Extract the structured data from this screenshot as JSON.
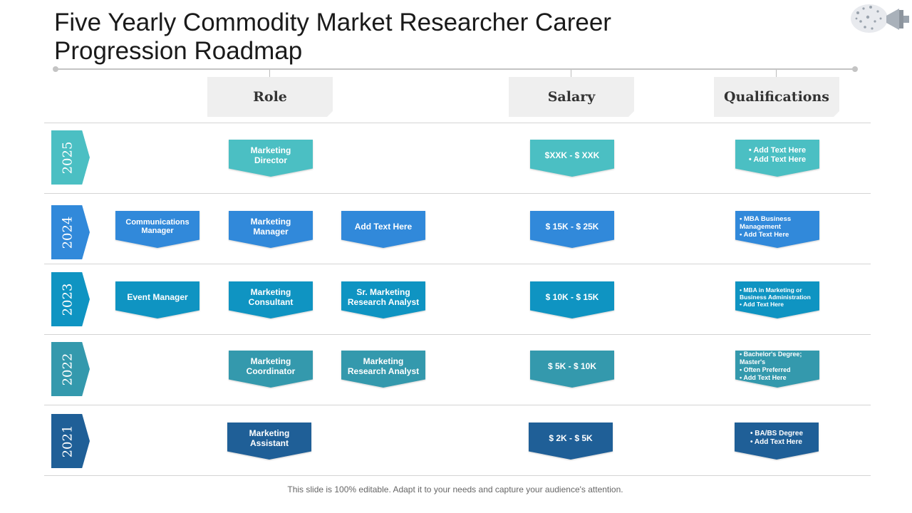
{
  "title": "Five Yearly Commodity Market Researcher Career Progression Roadmap",
  "icons": {
    "corner": "megaphone-icon"
  },
  "headers": {
    "role": "Role",
    "salary": "Salary",
    "qualifications": "Qualifications"
  },
  "colors": {
    "y2025": "#4bbfc3",
    "y2024": "#3189da",
    "y2023": "#0f94c2",
    "y2022": "#3499ad",
    "y2021": "#1f5f97"
  },
  "rows": [
    {
      "year": "2025",
      "roles": [
        "Marketing Director"
      ],
      "salary": "$XXK - $ XXK",
      "qualifications": [
        "Add Text Here",
        "Add Text Here"
      ]
    },
    {
      "year": "2024",
      "roles": [
        "Communications Manager",
        "Marketing Manager",
        "Add Text Here"
      ],
      "salary": "$ 15K - $ 25K",
      "qualifications": [
        "MBA Business Management",
        "Add Text Here"
      ]
    },
    {
      "year": "2023",
      "roles": [
        "Event Manager",
        "Marketing Consultant",
        "Sr. Marketing Research Analyst"
      ],
      "salary": "$ 10K - $ 15K",
      "qualifications": [
        "MBA in Marketing or Business Administration",
        "Add Text Here"
      ]
    },
    {
      "year": "2022",
      "roles": [
        "Marketing Coordinator",
        "Marketing Research Analyst"
      ],
      "salary": "$ 5K - $ 10K",
      "qualifications": [
        "Bachelor's Degree; Master's",
        "Often Preferred",
        "Add Text Here"
      ]
    },
    {
      "year": "2021",
      "roles": [
        "Marketing Assistant"
      ],
      "salary": "$ 2K - $ 5K",
      "qualifications": [
        "BA/BS Degree",
        "Add Text Here"
      ]
    }
  ],
  "footer": "This slide is 100% editable. Adapt it to your needs and capture your audience's attention."
}
